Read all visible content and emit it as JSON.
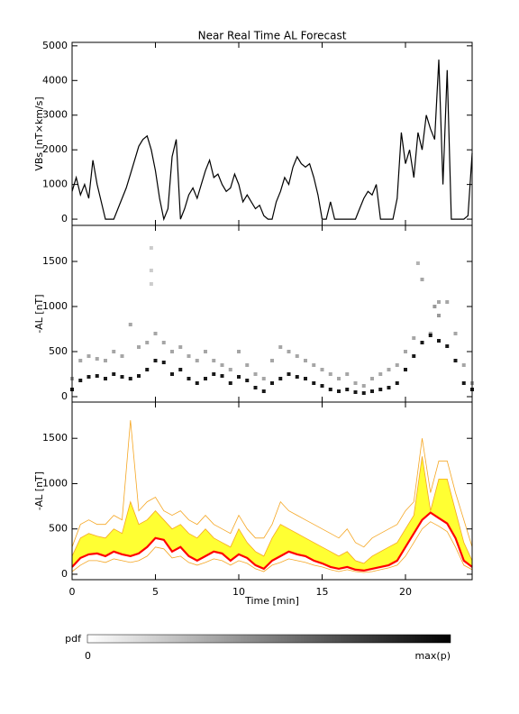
{
  "chart_data": [
    {
      "type": "line",
      "title": "Near Real Time AL Forecast",
      "ylabel": "VBs [nT×km/s]",
      "color": "#000000",
      "x": [
        0,
        0.25,
        0.5,
        0.75,
        1,
        1.25,
        1.5,
        1.75,
        2,
        2.25,
        2.5,
        2.75,
        3,
        3.25,
        3.5,
        3.75,
        4,
        4.25,
        4.5,
        4.75,
        5,
        5.25,
        5.5,
        5.75,
        6,
        6.25,
        6.5,
        6.75,
        7,
        7.25,
        7.5,
        7.75,
        8,
        8.25,
        8.5,
        8.75,
        9,
        9.25,
        9.5,
        9.75,
        10,
        10.25,
        10.5,
        10.75,
        11,
        11.25,
        11.5,
        11.75,
        12,
        12.25,
        12.5,
        12.75,
        13,
        13.25,
        13.5,
        13.75,
        14,
        14.25,
        14.5,
        14.75,
        15,
        15.25,
        15.5,
        15.75,
        16,
        16.25,
        16.5,
        16.75,
        17,
        17.25,
        17.5,
        17.75,
        18,
        18.25,
        18.5,
        18.75,
        19,
        19.25,
        19.5,
        19.75,
        20,
        20.25,
        20.5,
        20.75,
        21,
        21.25,
        21.5,
        21.75,
        22,
        22.25,
        22.5,
        22.75,
        23,
        23.25,
        23.5,
        23.75,
        24
      ],
      "values": [
        800,
        1200,
        700,
        1000,
        600,
        1700,
        1000,
        500,
        0,
        0,
        0,
        300,
        600,
        900,
        1300,
        1700,
        2100,
        2300,
        2400,
        2000,
        1400,
        600,
        0,
        300,
        1800,
        2300,
        0,
        300,
        700,
        900,
        600,
        1000,
        1400,
        1700,
        1200,
        1300,
        1000,
        800,
        900,
        1300,
        1000,
        500,
        700,
        500,
        300,
        400,
        100,
        0,
        0,
        500,
        800,
        1200,
        1000,
        1500,
        1800,
        1600,
        1500,
        1600,
        1200,
        700,
        0,
        0,
        500,
        0,
        0,
        0,
        0,
        0,
        0,
        300,
        600,
        800,
        700,
        1000,
        0,
        0,
        0,
        0,
        600,
        2500,
        1600,
        2000,
        1200,
        2500,
        2000,
        3000,
        2600,
        2300,
        4600,
        1000,
        4300,
        0,
        0,
        0,
        0,
        100,
        1900
      ],
      "xlim": [
        0,
        24
      ],
      "xticks": [
        0,
        5,
        10,
        15,
        20
      ],
      "ylim": [
        -180,
        5100
      ],
      "yticks": [
        0,
        1000,
        2000,
        3000,
        4000,
        5000
      ]
    },
    {
      "type": "density",
      "ylabel": "-AL [nT]",
      "color": "#000000",
      "x": [
        0,
        0,
        0.5,
        0.5,
        1,
        1,
        1.5,
        1.5,
        2,
        2,
        2.5,
        2.5,
        3,
        3,
        3.5,
        3.5,
        4,
        4,
        4.5,
        4.5,
        5,
        5,
        5.5,
        5.5,
        6,
        6,
        6.5,
        6.5,
        7,
        7,
        7.5,
        7.5,
        8,
        8,
        8.5,
        8.5,
        9,
        9,
        9.5,
        9.5,
        10,
        10,
        10.5,
        10.5,
        11,
        11,
        11.5,
        11.5,
        12,
        12,
        12.5,
        12.5,
        13,
        13,
        13.5,
        13.5,
        14,
        14,
        14.5,
        14.5,
        15,
        15,
        15.5,
        15.5,
        16,
        16,
        16.5,
        16.5,
        17,
        17,
        17.5,
        17.5,
        18,
        18,
        18.5,
        18.5,
        19,
        19,
        19.5,
        19.5,
        20,
        20,
        20.5,
        20.5,
        21,
        21,
        21.5,
        21.5,
        22,
        22,
        22.5,
        22.5,
        23,
        23,
        23.5,
        23.5,
        24,
        24,
        4.75,
        4.75,
        4.75,
        20.75,
        21.75,
        22
      ],
      "y": [
        80,
        200,
        180,
        400,
        220,
        450,
        230,
        420,
        200,
        400,
        250,
        500,
        220,
        450,
        200,
        800,
        230,
        550,
        300,
        600,
        400,
        700,
        380,
        600,
        250,
        500,
        300,
        550,
        200,
        450,
        150,
        400,
        200,
        500,
        250,
        400,
        230,
        350,
        150,
        300,
        220,
        500,
        180,
        350,
        100,
        250,
        60,
        200,
        150,
        400,
        200,
        550,
        250,
        500,
        220,
        450,
        200,
        400,
        150,
        350,
        120,
        300,
        80,
        250,
        60,
        200,
        80,
        250,
        50,
        150,
        40,
        120,
        60,
        200,
        80,
        250,
        100,
        300,
        150,
        350,
        300,
        500,
        450,
        650,
        600,
        1300,
        680,
        700,
        620,
        1050,
        560,
        1050,
        400,
        700,
        150,
        350,
        80,
        150,
        1650,
        1400,
        1250,
        1480,
        1000,
        900
      ],
      "p": [
        0.9,
        0.35,
        0.9,
        0.35,
        0.9,
        0.35,
        0.9,
        0.35,
        0.9,
        0.35,
        0.9,
        0.35,
        0.9,
        0.35,
        0.9,
        0.35,
        0.9,
        0.35,
        0.9,
        0.35,
        0.9,
        0.35,
        0.9,
        0.35,
        0.9,
        0.35,
        0.9,
        0.35,
        0.9,
        0.35,
        0.9,
        0.35,
        0.9,
        0.35,
        0.9,
        0.35,
        0.9,
        0.35,
        0.9,
        0.35,
        0.9,
        0.35,
        0.9,
        0.35,
        0.9,
        0.35,
        0.9,
        0.35,
        0.9,
        0.35,
        0.9,
        0.35,
        0.9,
        0.35,
        0.9,
        0.35,
        0.9,
        0.35,
        0.9,
        0.35,
        0.9,
        0.35,
        0.9,
        0.35,
        0.9,
        0.35,
        0.9,
        0.35,
        0.9,
        0.35,
        0.9,
        0.35,
        0.9,
        0.35,
        0.9,
        0.35,
        0.9,
        0.35,
        0.9,
        0.35,
        0.9,
        0.35,
        0.9,
        0.35,
        0.9,
        0.35,
        0.9,
        0.35,
        0.9,
        0.35,
        0.9,
        0.35,
        0.9,
        0.35,
        0.9,
        0.35,
        0.9,
        0.35,
        0.2,
        0.2,
        0.2,
        0.3,
        0.4,
        0.4
      ],
      "xlim": [
        0,
        24
      ],
      "xticks": [
        0,
        5,
        10,
        15,
        20
      ],
      "ylim": [
        -60,
        1900
      ],
      "yticks": [
        0,
        500,
        1000,
        1500
      ]
    },
    {
      "type": "band",
      "ylabel": "-AL [nT]",
      "xlabel": "Time [min]",
      "x": [
        0,
        0.5,
        1,
        1.5,
        2,
        2.5,
        3,
        3.5,
        4,
        4.5,
        5,
        5.5,
        6,
        6.5,
        7,
        7.5,
        8,
        8.5,
        9,
        9.5,
        10,
        10.5,
        11,
        11.5,
        12,
        12.5,
        13,
        13.5,
        14,
        14.5,
        15,
        15.5,
        16,
        16.5,
        17,
        17.5,
        18,
        18.5,
        19,
        19.5,
        20,
        20.5,
        21,
        21.5,
        22,
        22.5,
        23,
        23.5,
        24
      ],
      "series": [
        {
          "color": "#f5a623",
          "values": [
            300,
            550,
            600,
            550,
            550,
            650,
            600,
            1700,
            700,
            800,
            850,
            700,
            650,
            700,
            600,
            550,
            650,
            550,
            500,
            450,
            650,
            500,
            400,
            400,
            550,
            800,
            700,
            650,
            600,
            550,
            500,
            450,
            400,
            500,
            350,
            300,
            400,
            450,
            500,
            550,
            700,
            800,
            1500,
            900,
            1250,
            1250,
            900,
            600,
            300
          ]
        },
        {
          "color": "#f5a623",
          "fill": "#ffff33",
          "values": [
            200,
            400,
            450,
            420,
            400,
            500,
            450,
            800,
            550,
            600,
            700,
            600,
            500,
            550,
            450,
            400,
            500,
            400,
            350,
            300,
            500,
            350,
            250,
            200,
            400,
            550,
            500,
            450,
            400,
            350,
            300,
            250,
            200,
            250,
            150,
            120,
            200,
            250,
            300,
            350,
            500,
            650,
            1300,
            700,
            1050,
            1050,
            700,
            350,
            150
          ]
        },
        {
          "color": "#ff0000",
          "values": [
            80,
            180,
            220,
            230,
            200,
            250,
            220,
            200,
            230,
            300,
            400,
            380,
            250,
            300,
            200,
            150,
            200,
            250,
            230,
            150,
            220,
            180,
            100,
            60,
            150,
            200,
            250,
            220,
            200,
            150,
            120,
            80,
            60,
            80,
            50,
            40,
            60,
            80,
            100,
            150,
            300,
            450,
            600,
            680,
            620,
            560,
            400,
            150,
            80
          ]
        },
        {
          "color": "#f5a623",
          "values": [
            30,
            100,
            150,
            150,
            130,
            170,
            150,
            130,
            150,
            200,
            300,
            280,
            180,
            200,
            130,
            100,
            130,
            170,
            150,
            100,
            150,
            120,
            60,
            30,
            100,
            130,
            170,
            150,
            130,
            100,
            80,
            50,
            30,
            50,
            30,
            20,
            30,
            50,
            70,
            100,
            200,
            350,
            500,
            580,
            530,
            470,
            300,
            100,
            50
          ]
        }
      ],
      "xlim": [
        0,
        24
      ],
      "xticks": [
        0,
        5,
        10,
        15,
        20
      ],
      "ylim": [
        -60,
        1900
      ],
      "yticks": [
        0,
        500,
        1000,
        1500
      ]
    },
    {
      "type": "colorbar",
      "label": "pdf",
      "min_label": "0",
      "max_label": "max(p)"
    }
  ]
}
